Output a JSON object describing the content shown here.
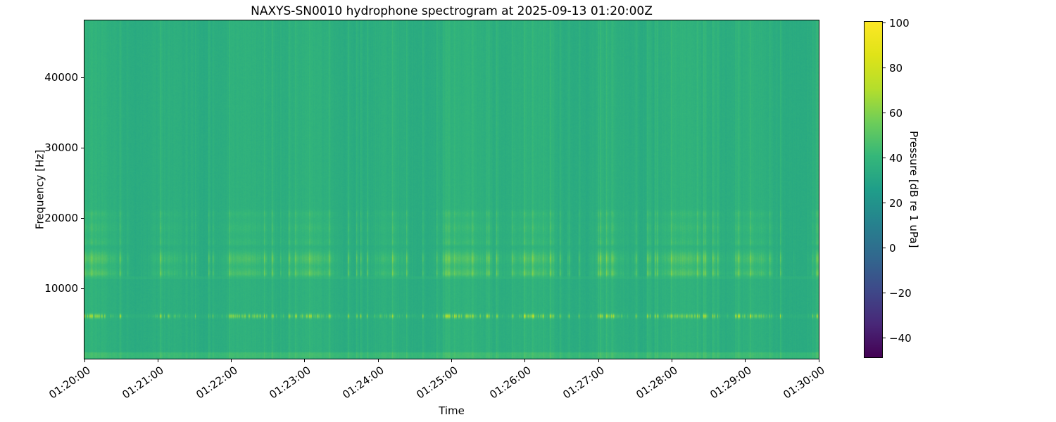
{
  "figure": {
    "background_color": "#ffffff",
    "text_color": "#000000"
  },
  "chart_data": {
    "type": "heatmap",
    "subtype": "spectrogram",
    "title": "NAXYS-SN0010 hydrophone spectrogram at 2025-09-13 01:20:00Z",
    "xlabel": "Time",
    "ylabel": "Frequency [Hz]",
    "x_ticks": [
      "01:20:00",
      "01:21:00",
      "01:22:00",
      "01:23:00",
      "01:24:00",
      "01:25:00",
      "01:26:00",
      "01:27:00",
      "01:28:00",
      "01:29:00",
      "01:30:00"
    ],
    "x_range": [
      "01:20:00",
      "01:30:00"
    ],
    "y_ticks": [
      {
        "label": "10000",
        "value": 10000
      },
      {
        "label": "20000",
        "value": 20000
      },
      {
        "label": "30000",
        "value": 30000
      },
      {
        "label": "40000",
        "value": 40000
      }
    ],
    "y_range_hz": [
      0,
      48100
    ],
    "grid": false,
    "legend": "none",
    "colorbar": {
      "label": "Pressure [dB re 1 uPa]",
      "ticks": [
        {
          "label": "100",
          "value": 100
        },
        {
          "label": "80",
          "value": 80
        },
        {
          "label": "60",
          "value": 60
        },
        {
          "label": "40",
          "value": 40
        },
        {
          "label": "20",
          "value": 20
        },
        {
          "label": "0",
          "value": 0
        },
        {
          "label": "−20",
          "value": -20
        },
        {
          "label": "−40",
          "value": -40
        }
      ],
      "range_db": [
        -48.5,
        100.5
      ],
      "colormap": "viridis",
      "stops": [
        {
          "pos": 0.0,
          "color": "#440154"
        },
        {
          "pos": 0.1,
          "color": "#482878"
        },
        {
          "pos": 0.2,
          "color": "#3e4989"
        },
        {
          "pos": 0.3,
          "color": "#31688e"
        },
        {
          "pos": 0.4,
          "color": "#26828e"
        },
        {
          "pos": 0.5,
          "color": "#1f9e89"
        },
        {
          "pos": 0.6,
          "color": "#35b779"
        },
        {
          "pos": 0.7,
          "color": "#6dcd59"
        },
        {
          "pos": 0.8,
          "color": "#b4de2c"
        },
        {
          "pos": 0.9,
          "color": "#dfe318"
        },
        {
          "pos": 1.0,
          "color": "#fde725"
        }
      ]
    },
    "content_description": {
      "background": "near-uniform broadband noise floor (viridis green) across 0-48 kHz with faint full-height vertical striations from transient events",
      "background_level_norm": 0.553,
      "approx_background_db": 34,
      "striation_density": "clusters of brighter vertical lines repeating every ~1 min with quieter gaps",
      "bands": [
        {
          "name": "striation-band-main",
          "kind": "striation",
          "f_low": 11500,
          "f_high": 15900,
          "gain": 0.14,
          "note": "dense bright vertical striations 11.5-16 kHz, approx 45-62 dB"
        },
        {
          "name": "striation-band-upper",
          "kind": "striation",
          "f_low": 15900,
          "f_high": 21500,
          "gain": 0.055,
          "note": "weaker striations fading toward 21 kHz"
        },
        {
          "name": "tonal-band-6khz",
          "kind": "dash",
          "f_center": 6100,
          "f_low": 5500,
          "f_high": 6700,
          "gain": 0.24,
          "steady": 0.015,
          "note": "thin bright dashed tonal line near 6 kHz, approx 70-80 dB"
        },
        {
          "name": "low-frequency-line",
          "kind": "steady",
          "f_low": 150,
          "f_high": 900,
          "steady": 0.045,
          "note": "slightly brighter continuous strip near the bottom edge"
        },
        {
          "name": "edge-line-11_6khz",
          "kind": "steady",
          "f_low": 11350,
          "f_high": 11750,
          "steady": 0.018,
          "note": "faint continuous brighter line at lower edge of the main striation band"
        }
      ]
    }
  }
}
